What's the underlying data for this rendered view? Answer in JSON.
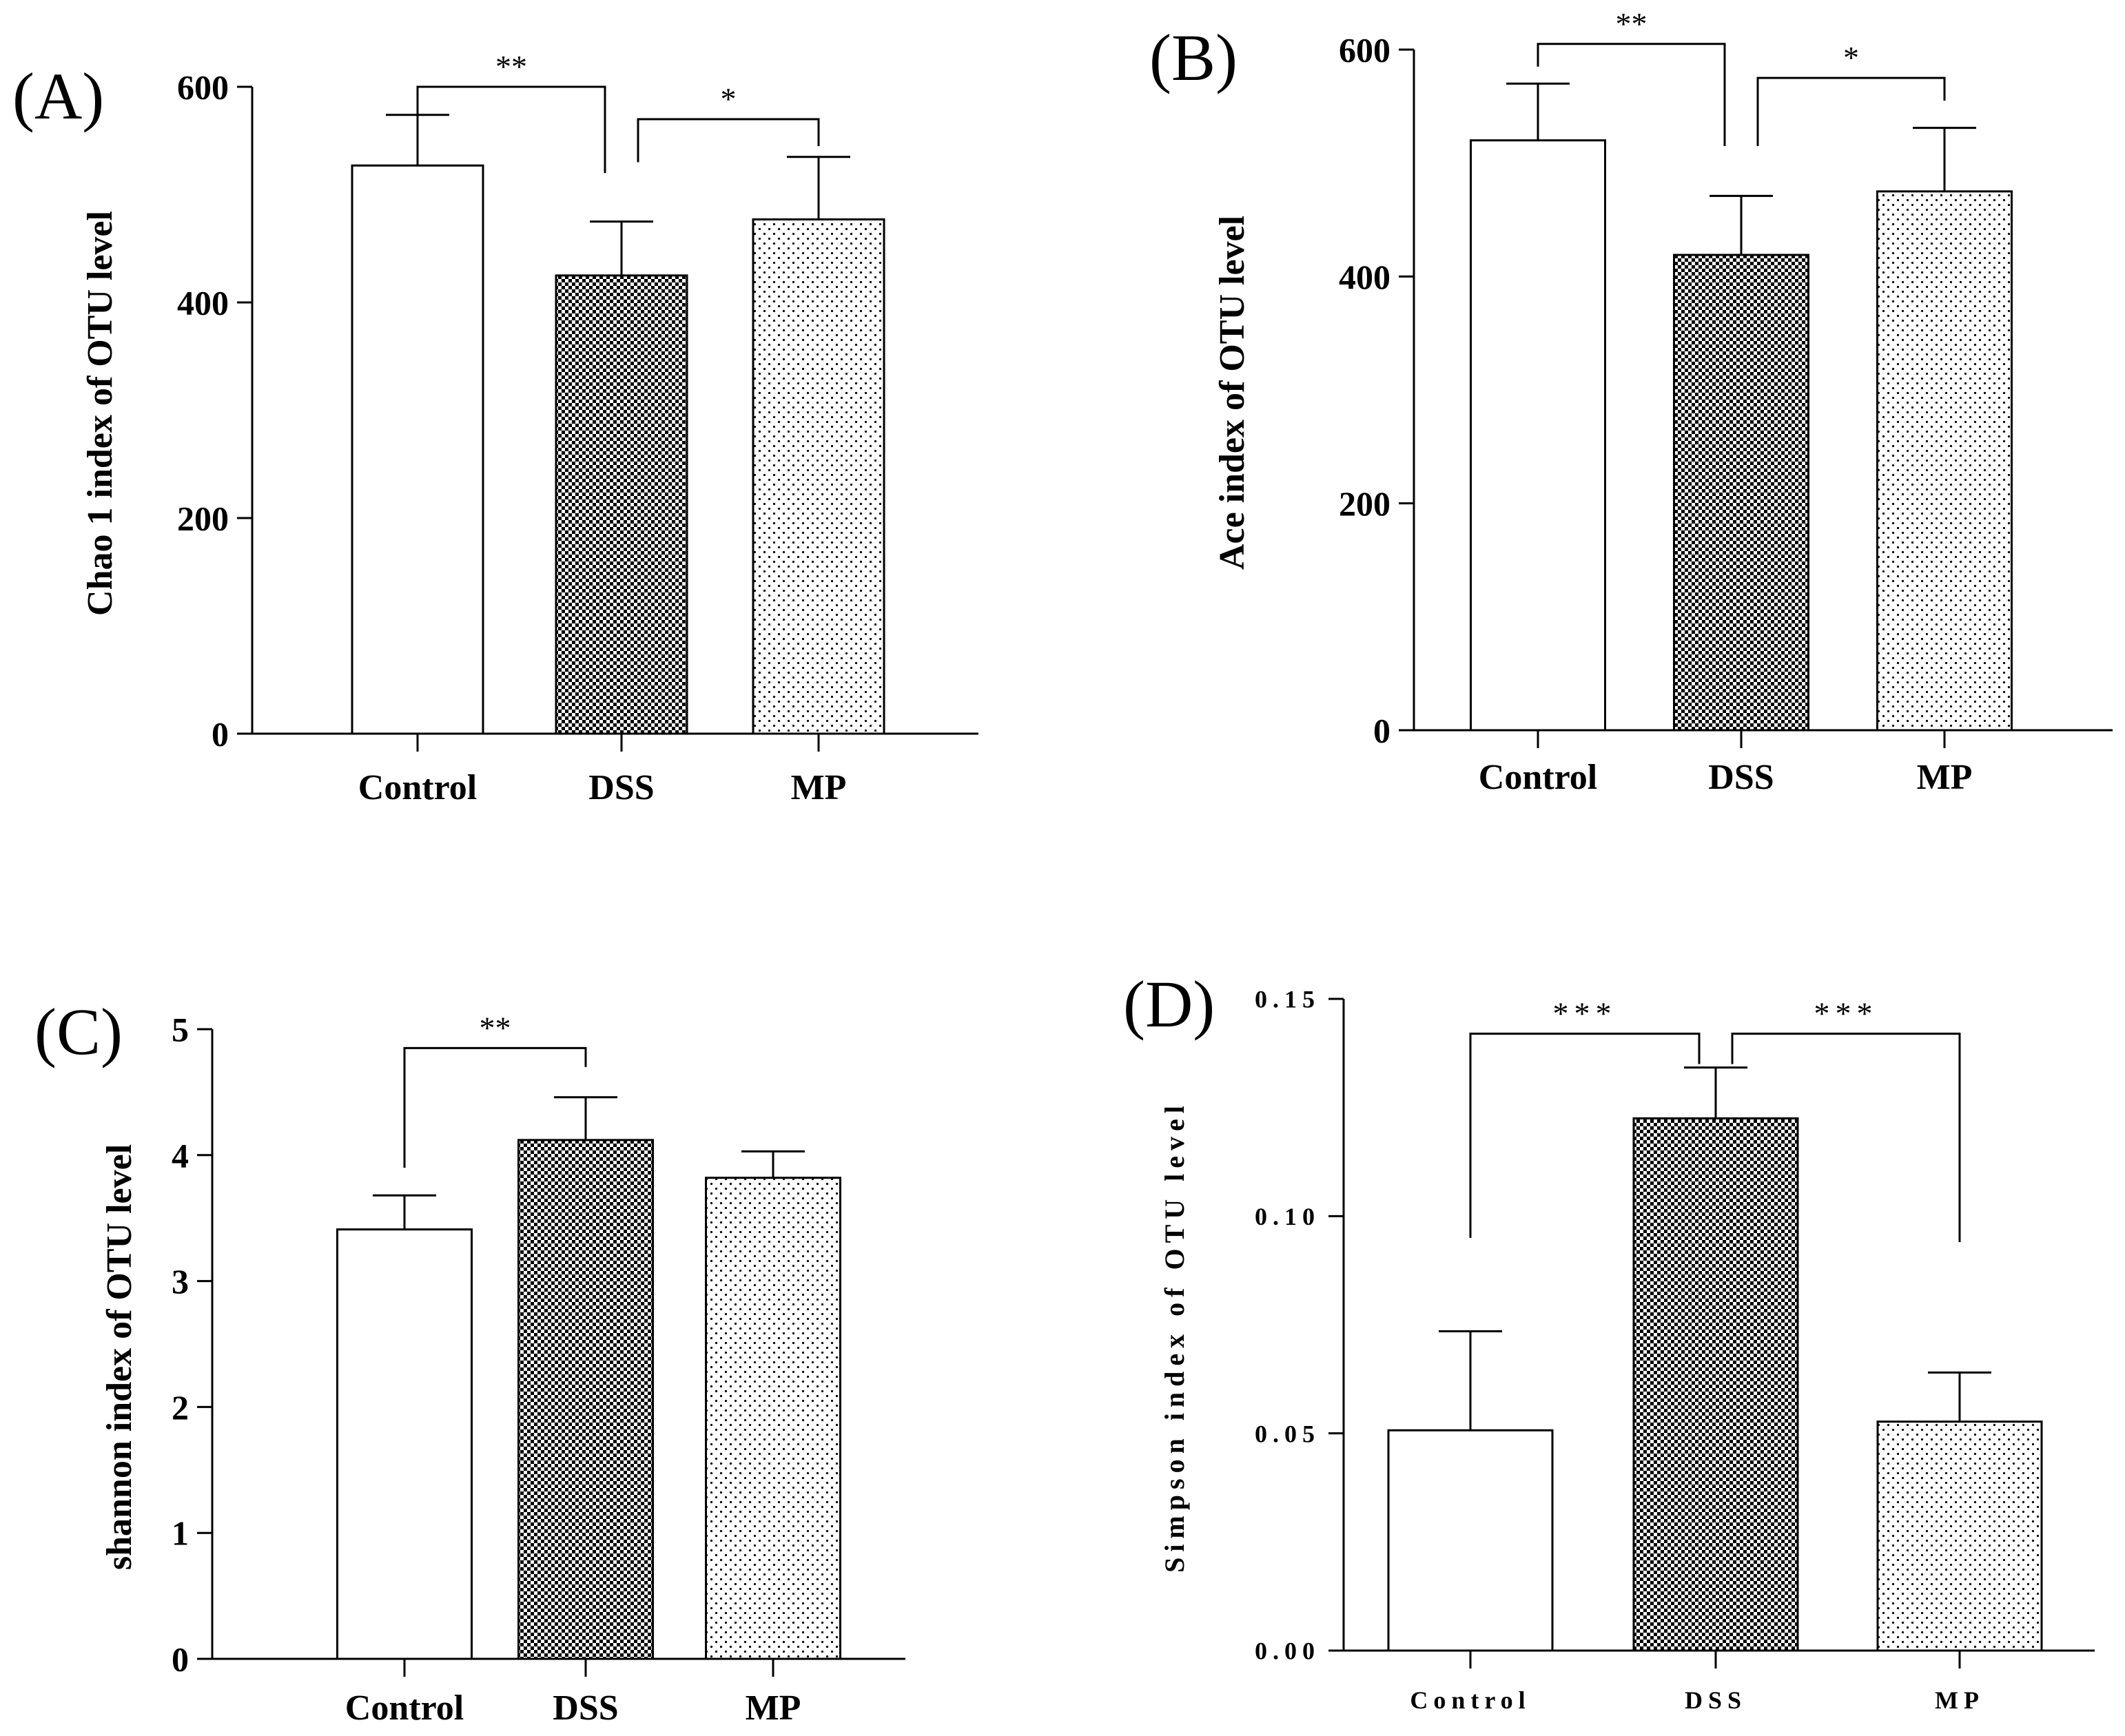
{
  "chart_data": [
    {
      "type": "bar",
      "panel_label": "(A)",
      "categories": [
        "Control",
        "DSS",
        "MP"
      ],
      "values": [
        527,
        425,
        477
      ],
      "errors": [
        47,
        50,
        58
      ],
      "fills": [
        "white",
        "checker",
        "dots"
      ],
      "ylabel": "Chao 1 index of OTU level",
      "ylim": [
        0,
        600
      ],
      "yticks": [
        0,
        200,
        400,
        600
      ],
      "ytick_labels": [
        "0",
        "200",
        "400",
        "600"
      ],
      "significance": [
        {
          "from": 0,
          "to": 1,
          "label": "**",
          "level": 600,
          "left_drop": 573,
          "right_drop": 520
        },
        {
          "from": 1,
          "to": 2,
          "label": "*",
          "level": 570,
          "left_drop": 530,
          "right_drop": 545
        }
      ]
    },
    {
      "type": "bar",
      "panel_label": "(B)",
      "categories": [
        "Control",
        "DSS",
        "MP"
      ],
      "values": [
        520,
        419,
        475
      ],
      "errors": [
        50,
        52,
        56
      ],
      "fills": [
        "white",
        "checker",
        "dots"
      ],
      "ylabel": "Ace index of OTU level",
      "ylim": [
        0,
        600
      ],
      "yticks": [
        0,
        200,
        400,
        600
      ],
      "ytick_labels": [
        "0",
        "200",
        "400",
        "600"
      ],
      "significance": [
        {
          "from": 0,
          "to": 1,
          "label": "**",
          "level": 605,
          "left_drop": 585,
          "right_drop": 515
        },
        {
          "from": 1,
          "to": 2,
          "label": "*",
          "level": 575,
          "left_drop": 515,
          "right_drop": 555
        }
      ]
    },
    {
      "type": "bar",
      "panel_label": "(C)",
      "categories": [
        "Control",
        "DSS",
        "MP"
      ],
      "values": [
        3.41,
        4.12,
        3.82
      ],
      "errors": [
        0.27,
        0.34,
        0.21
      ],
      "fills": [
        "white",
        "checker",
        "dots"
      ],
      "ylabel": "shannon index of OTU level",
      "ylim": [
        0,
        5
      ],
      "yticks": [
        0,
        1,
        2,
        3,
        4,
        5
      ],
      "ytick_labels": [
        "0",
        "1",
        "2",
        "3",
        "4",
        "5"
      ],
      "significance": [
        {
          "from": 0,
          "to": 1,
          "label": "**",
          "level": 4.85,
          "left_drop": 3.9,
          "right_drop": 4.7
        }
      ]
    },
    {
      "type": "bar",
      "panel_label": "(D)",
      "categories": [
        "Control",
        "DSS",
        "MP"
      ],
      "values": [
        0.0507,
        0.1225,
        0.0527
      ],
      "errors": [
        0.0228,
        0.0117,
        0.0113
      ],
      "fills": [
        "white",
        "checker",
        "dots"
      ],
      "ylabel": "Simpson index of OTU level",
      "ylim": [
        0,
        0.15
      ],
      "yticks": [
        0,
        0.05,
        0.1,
        0.15
      ],
      "ytick_labels": [
        "0.00",
        "0.05",
        "0.10",
        "0.15"
      ],
      "significance": [
        {
          "from": 0,
          "to": 1,
          "label": "***",
          "level": 0.142,
          "left_drop": 0.095,
          "right_drop": 0.135
        },
        {
          "from": 1,
          "to": 2,
          "label": "***",
          "level": 0.142,
          "left_drop": 0.135,
          "right_drop": 0.094
        }
      ]
    }
  ]
}
